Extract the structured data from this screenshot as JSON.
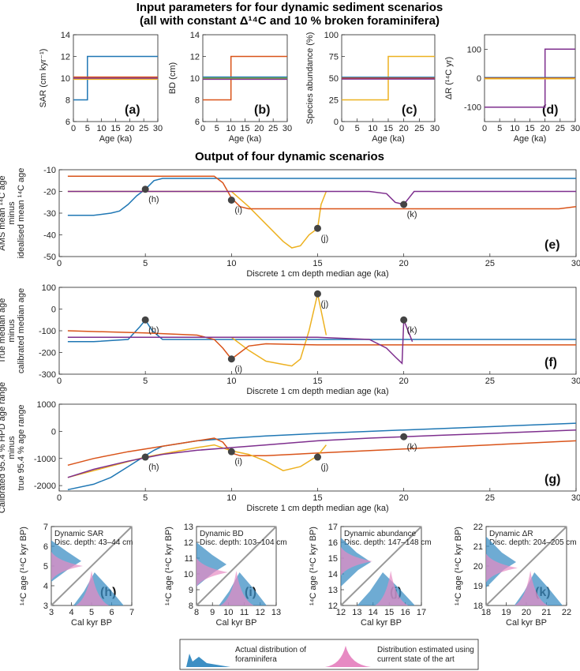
{
  "titles": {
    "input_line1": "Input parameters for four dynamic sediment scenarios",
    "input_line2": "(all with constant Δ¹⁴C and 10 % broken foraminifera)",
    "output": "Output of four dynamic scenarios"
  },
  "colors": {
    "blue": "#1f77b4",
    "orange": "#d95319",
    "yellow": "#edb120",
    "purple": "#7e2f8e",
    "green": "#77ac30",
    "grey": "#999999",
    "dot": "#444444",
    "actual": "#3d8fc4",
    "estimated": "#e78ac3"
  },
  "legend": {
    "actual": "Actual distribution of foraminifera",
    "estimated": "Distribution estimated using current state of the art"
  },
  "chart_data": [
    {
      "type": "line",
      "panel": "(a)",
      "xlabel": "Age (ka)",
      "ylabel": "SAR (cm kyr⁻¹)",
      "xlim": [
        0,
        30
      ],
      "ylim": [
        6,
        14
      ],
      "xticks": [
        0,
        5,
        10,
        15,
        20,
        25,
        30
      ],
      "yticks": [
        6,
        8,
        10,
        12,
        14
      ],
      "series": [
        {
          "color": "blue",
          "x": [
            0,
            5,
            5,
            30
          ],
          "y": [
            8,
            8,
            12,
            12
          ]
        },
        {
          "color": "orange",
          "x": [
            0,
            30
          ],
          "y": [
            10.1,
            10.1
          ]
        },
        {
          "color": "yellow",
          "x": [
            0,
            30
          ],
          "y": [
            9.9,
            9.9
          ]
        },
        {
          "color": "purple",
          "x": [
            0,
            30
          ],
          "y": [
            10,
            10
          ]
        }
      ]
    },
    {
      "type": "line",
      "panel": "(b)",
      "xlabel": "Age (ka)",
      "ylabel": "BD (cm)",
      "xlim": [
        0,
        30
      ],
      "ylim": [
        6,
        14
      ],
      "xticks": [
        0,
        5,
        10,
        15,
        20,
        25,
        30
      ],
      "yticks": [
        6,
        8,
        10,
        12,
        14
      ],
      "series": [
        {
          "color": "orange",
          "x": [
            0,
            10,
            10,
            30
          ],
          "y": [
            8,
            8,
            12,
            12
          ]
        },
        {
          "color": "blue",
          "x": [
            0,
            30
          ],
          "y": [
            10.1,
            10.1
          ]
        },
        {
          "color": "green",
          "x": [
            0,
            30
          ],
          "y": [
            10,
            10
          ]
        },
        {
          "color": "purple",
          "x": [
            0,
            30
          ],
          "y": [
            9.9,
            9.9
          ]
        }
      ]
    },
    {
      "type": "line",
      "panel": "(c)",
      "xlabel": "Age (ka)",
      "ylabel": "Species abundance (%)",
      "xlim": [
        0,
        30
      ],
      "ylim": [
        0,
        100
      ],
      "xticks": [
        0,
        5,
        10,
        15,
        20,
        25,
        30
      ],
      "yticks": [
        0,
        25,
        50,
        75,
        100
      ],
      "series": [
        {
          "color": "yellow",
          "x": [
            0,
            15,
            15,
            30
          ],
          "y": [
            25,
            25,
            75,
            75
          ]
        },
        {
          "color": "blue",
          "x": [
            0,
            30
          ],
          "y": [
            51,
            51
          ]
        },
        {
          "color": "orange",
          "x": [
            0,
            30
          ],
          "y": [
            50,
            50
          ]
        },
        {
          "color": "purple",
          "x": [
            0,
            30
          ],
          "y": [
            49,
            49
          ]
        }
      ]
    },
    {
      "type": "line",
      "panel": "(d)",
      "xlabel": "Age (ka)",
      "ylabel": "ΔR (¹⁴C yr)",
      "xlim": [
        0,
        30
      ],
      "ylim": [
        -150,
        150
      ],
      "xticks": [
        0,
        5,
        10,
        15,
        20,
        25,
        30
      ],
      "yticks": [
        -100,
        0,
        100
      ],
      "series": [
        {
          "color": "purple",
          "x": [
            0,
            20,
            20,
            30
          ],
          "y": [
            -100,
            -100,
            100,
            100
          ]
        },
        {
          "color": "blue",
          "x": [
            0,
            30
          ],
          "y": [
            2,
            2
          ]
        },
        {
          "color": "orange",
          "x": [
            0,
            30
          ],
          "y": [
            0,
            0
          ]
        },
        {
          "color": "yellow",
          "x": [
            0,
            30
          ],
          "y": [
            -2,
            -2
          ]
        }
      ]
    },
    {
      "type": "line",
      "panel": "(e)",
      "xlabel": "Discrete 1 cm depth median age (ka)",
      "ylabel": [
        "AMS mean ¹⁴C age",
        "minus",
        "idealised mean ¹⁴C age"
      ],
      "xlim": [
        0,
        30
      ],
      "ylim": [
        -50,
        -10
      ],
      "xticks": [
        0,
        5,
        10,
        15,
        20,
        25,
        30
      ],
      "yticks": [
        -50,
        -40,
        -30,
        -20,
        -10
      ],
      "series": [
        {
          "color": "blue",
          "x": [
            0.5,
            1,
            2,
            3,
            3.5,
            4,
            4.5,
            5,
            5.5,
            6,
            8,
            10,
            15,
            20,
            25,
            30
          ],
          "y": [
            -31,
            -31,
            -31,
            -30,
            -29,
            -26,
            -22,
            -19,
            -15,
            -14,
            -14,
            -14,
            -14,
            -14,
            -14,
            -14
          ]
        },
        {
          "color": "yellow",
          "x": [
            0.5,
            5,
            10,
            11,
            12,
            13,
            13.5,
            14,
            14.5,
            15,
            15.2,
            15.5
          ],
          "y": [
            -20,
            -20,
            -20,
            -27,
            -35,
            -43,
            -46,
            -45,
            -40,
            -37,
            -26,
            -20
          ]
        },
        {
          "color": "orange",
          "x": [
            0.5,
            5,
            8,
            9,
            9.5,
            10,
            10.5,
            11,
            12,
            15,
            20,
            25,
            29,
            30
          ],
          "y": [
            -13,
            -13,
            -13,
            -13,
            -16,
            -23,
            -27,
            -28,
            -28,
            -28,
            -28,
            -28,
            -28,
            -27
          ]
        },
        {
          "color": "purple",
          "x": [
            0.5,
            5,
            10,
            18,
            19,
            19.5,
            20,
            20.3,
            20.6,
            21,
            25,
            30
          ],
          "y": [
            -20,
            -20,
            -20,
            -20,
            -21,
            -25,
            -26,
            -23,
            -20,
            -20,
            -20,
            -20
          ]
        }
      ],
      "annotations": [
        {
          "label": "(h)",
          "x": 5,
          "y": -19
        },
        {
          "label": "(i)",
          "x": 10,
          "y": -24
        },
        {
          "label": "(j)",
          "x": 15,
          "y": -37
        },
        {
          "label": "(k)",
          "x": 20,
          "y": -26
        }
      ]
    },
    {
      "type": "line",
      "panel": "(f)",
      "xlabel": "Discrete 1 cm depth median age (ka)",
      "ylabel": [
        "True median age",
        "minus",
        "calibrated median age"
      ],
      "xlim": [
        0,
        30
      ],
      "ylim": [
        -300,
        100
      ],
      "xticks": [
        0,
        5,
        10,
        15,
        20,
        25,
        30
      ],
      "yticks": [
        -300,
        -200,
        -100,
        0,
        100
      ],
      "series": [
        {
          "color": "blue",
          "x": [
            0.5,
            2,
            4,
            4.7,
            5,
            5.4,
            6,
            10,
            15,
            20,
            25,
            30
          ],
          "y": [
            -150,
            -150,
            -140,
            -80,
            -50,
            -100,
            -140,
            -140,
            -140,
            -140,
            -140,
            -140
          ]
        },
        {
          "color": "yellow",
          "x": [
            0.5,
            5,
            10,
            11,
            12,
            13,
            13.5,
            14,
            14.5,
            15,
            15.5
          ],
          "y": [
            -130,
            -130,
            -130,
            -190,
            -240,
            -255,
            -262,
            -230,
            -100,
            70,
            -120
          ]
        },
        {
          "color": "orange",
          "x": [
            0.5,
            5,
            8,
            9,
            9.5,
            10,
            10.5,
            11,
            12,
            15,
            20,
            25,
            30
          ],
          "y": [
            -100,
            -110,
            -120,
            -140,
            -180,
            -230,
            -200,
            -170,
            -160,
            -165,
            -165,
            -165,
            -165
          ]
        },
        {
          "color": "purple",
          "x": [
            0.5,
            5,
            10,
            15,
            18,
            19,
            19.5,
            19.9,
            20,
            20.5
          ],
          "y": [
            -130,
            -130,
            -130,
            -130,
            -140,
            -180,
            -220,
            -250,
            -50,
            -150
          ]
        }
      ],
      "annotations": [
        {
          "label": "(h)",
          "x": 5,
          "y": -50
        },
        {
          "label": "(i)",
          "x": 10,
          "y": -230
        },
        {
          "label": "(j)",
          "x": 15,
          "y": 70
        },
        {
          "label": "(k)",
          "x": 20,
          "y": -50
        }
      ]
    },
    {
      "type": "line",
      "panel": "(g)",
      "xlabel": "Discrete 1 cm depth median age (ka)",
      "ylabel": [
        "Calibrated 95.4 % HPD age range",
        "minus",
        "true 95.4 % age range"
      ],
      "xlim": [
        0,
        30
      ],
      "ylim": [
        -2200,
        1000
      ],
      "xticks": [
        0,
        5,
        10,
        15,
        20,
        25,
        30
      ],
      "yticks": [
        -2000,
        -1000,
        0,
        1000
      ],
      "series": [
        {
          "color": "blue",
          "x": [
            0.5,
            2,
            3,
            4,
            5,
            5.5,
            6,
            8,
            10,
            12,
            15,
            20,
            25,
            30
          ],
          "y": [
            -2150,
            -1950,
            -1700,
            -1300,
            -900,
            -700,
            -550,
            -350,
            -250,
            -170,
            -80,
            50,
            170,
            300
          ]
        },
        {
          "color": "orange",
          "x": [
            0.5,
            2,
            4,
            6,
            8,
            9,
            9.5,
            10,
            10.5,
            11,
            12,
            15,
            20,
            25,
            30
          ],
          "y": [
            -1250,
            -1000,
            -750,
            -550,
            -350,
            -250,
            -400,
            -800,
            -900,
            -900,
            -900,
            -800,
            -650,
            -500,
            -350
          ]
        },
        {
          "color": "yellow",
          "x": [
            0.5,
            5,
            8,
            9,
            10,
            11,
            12,
            13,
            14,
            14.5,
            15,
            15.5
          ],
          "y": [
            -1700,
            -950,
            -600,
            -500,
            -720,
            -850,
            -1100,
            -1450,
            -1300,
            -1100,
            -900,
            -500
          ]
        },
        {
          "color": "purple",
          "x": [
            0.5,
            2,
            4,
            6,
            8,
            10,
            12,
            15,
            18,
            20,
            22,
            25,
            30
          ],
          "y": [
            -1700,
            -1400,
            -1100,
            -850,
            -700,
            -600,
            -500,
            -350,
            -250,
            -200,
            -150,
            -80,
            50
          ]
        }
      ],
      "annotations": [
        {
          "label": "(h)",
          "x": 5,
          "y": -950
        },
        {
          "label": "(i)",
          "x": 10,
          "y": -750
        },
        {
          "label": "(j)",
          "x": 15,
          "y": -950
        },
        {
          "label": "(k)",
          "x": 20,
          "y": -200
        }
      ]
    },
    {
      "type": "area",
      "panel": "(h)",
      "note": [
        "Dynamic SAR",
        "Disc. depth: 43–44 cm"
      ],
      "xlabel": "Cal kyr BP",
      "ylabel": "¹⁴C age (¹⁴C kyr BP)",
      "xlim": [
        3,
        7
      ],
      "ylim": [
        3,
        7
      ],
      "xticks": [
        3,
        4,
        5,
        6,
        7
      ],
      "yticks": [
        3,
        4,
        5,
        6,
        7
      ],
      "actual_x_range": [
        4.1,
        6.6
      ],
      "estimated_x_peak": 5.0,
      "actual_y_range": [
        4.2,
        6.3
      ],
      "estimated_y_peak": 5.0
    },
    {
      "type": "area",
      "panel": "(i)",
      "note": [
        "Dynamic BD",
        "Disc. depth: 103–104 cm"
      ],
      "xlabel": "Cal kyr BP",
      "ylabel": "¹⁴C age (¹⁴C kyr BP)",
      "xlim": [
        8,
        13
      ],
      "ylim": [
        8,
        13
      ],
      "xticks": [
        8,
        9,
        10,
        11,
        12,
        13
      ],
      "yticks": [
        8,
        9,
        10,
        11,
        12,
        13
      ],
      "actual_x_range": [
        9.4,
        12.4
      ],
      "estimated_x_peak": 10.5,
      "actual_y_range": [
        9.2,
        12.0
      ],
      "estimated_y_peak": 10.1
    },
    {
      "type": "area",
      "panel": "(j)",
      "note": [
        "Dynamic abundance",
        "Disc. depth: 147–148 cm"
      ],
      "xlabel": "Cal kyr BP",
      "ylabel": "¹⁴C age (¹⁴C kyr BP)",
      "xlim": [
        12,
        17
      ],
      "ylim": [
        12,
        17
      ],
      "xticks": [
        12,
        13,
        14,
        15,
        16,
        17
      ],
      "yticks": [
        12,
        13,
        14,
        15,
        16,
        17
      ],
      "actual_x_range": [
        13.0,
        16.6
      ],
      "estimated_x_peak": 15.1,
      "actual_y_range": [
        13.2,
        16.3
      ],
      "estimated_y_peak": 14.8
    },
    {
      "type": "area",
      "panel": "(k)",
      "note": [
        "Dynamic ΔR",
        "Disc. depth: 204–205 cm"
      ],
      "xlabel": "Cal kyr BP",
      "ylabel": "¹⁴C age (¹⁴C kyr BP)",
      "xlim": [
        18,
        22
      ],
      "ylim": [
        18,
        22
      ],
      "xticks": [
        18,
        19,
        20,
        21,
        22
      ],
      "yticks": [
        18,
        19,
        20,
        21,
        22
      ],
      "actual_x_range": [
        19.4,
        21.8
      ],
      "estimated_x_peak": 20.2,
      "actual_y_range": [
        18.9,
        21.5
      ],
      "estimated_y_peak": 19.9
    }
  ]
}
